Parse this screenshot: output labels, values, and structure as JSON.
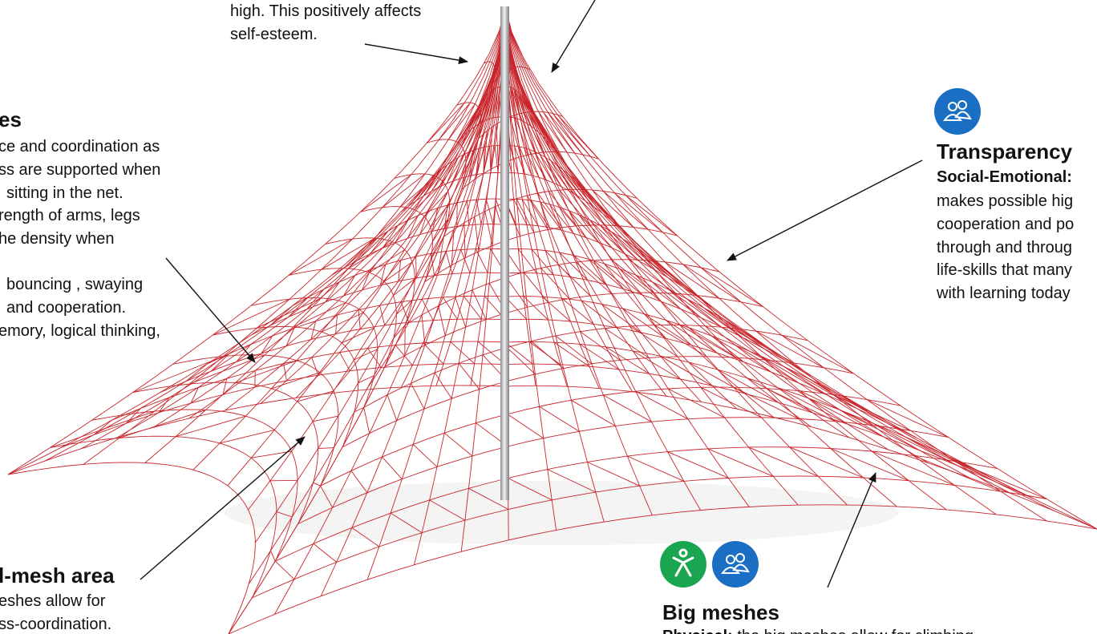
{
  "top_note": {
    "lines": [
      "high. This positively affects",
      "self-esteem."
    ]
  },
  "left_note": {
    "title": "es",
    "lines": [
      "ce and coordination as",
      "ss are supported when",
      "sitting in the net.",
      "rength of arms, legs",
      "he density when",
      "bouncing , swaying",
      "and cooperation.",
      "emory, logical thinking,"
    ]
  },
  "right_note": {
    "title": "Transparency",
    "subtitle": "Social-Emotional:",
    "lines": [
      "makes possible hig",
      "cooperation and po",
      "through and throug",
      "life-skills that many",
      "with learning today"
    ]
  },
  "bottom_left_note": {
    "title": "l-mesh area",
    "lines": [
      "eshes allow for",
      "ss-coordination."
    ]
  },
  "bottom_right_note": {
    "title": "Big meshes",
    "label": "Physical:",
    "text": "the big meshes allow for climbing"
  }
}
